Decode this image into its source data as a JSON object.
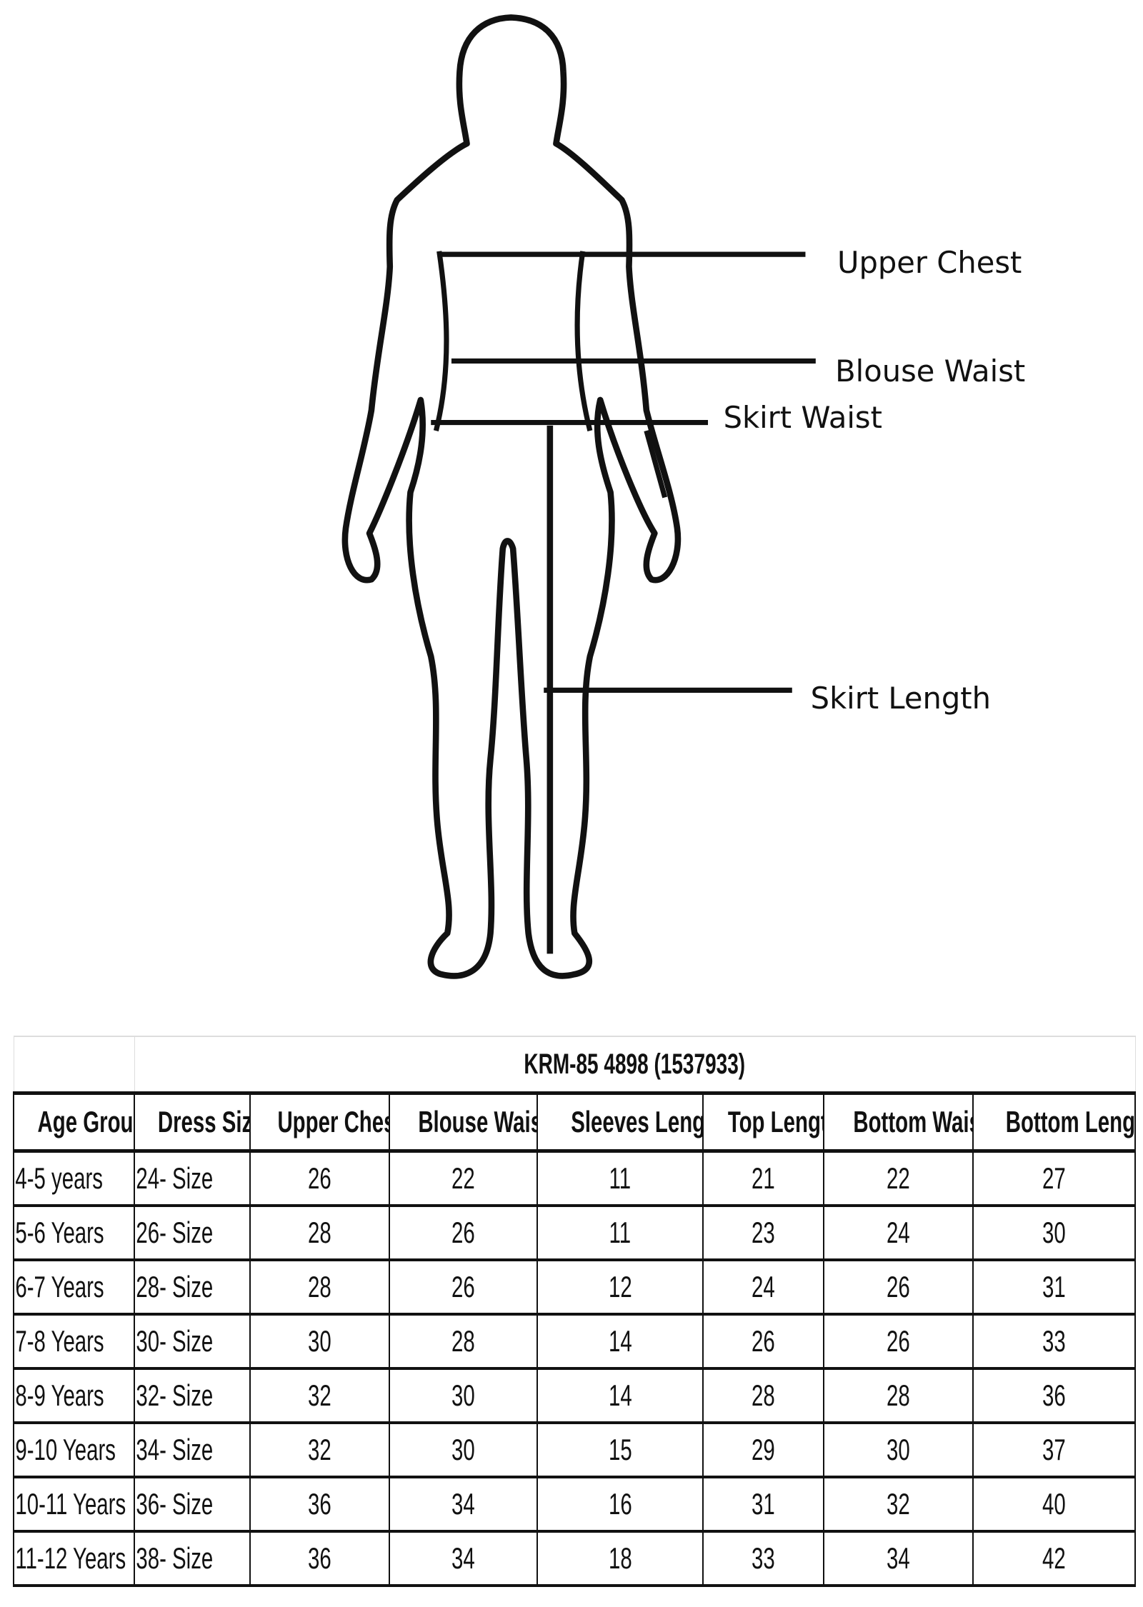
{
  "diagram": {
    "labels": {
      "upper_chest": "Upper Chest",
      "blouse_waist": "Blouse Waist",
      "skirt_waist": "Skirt Waist",
      "skirt_length": "Skirt Length"
    }
  },
  "table": {
    "title": "KRM-85 4898 (1537933)",
    "headers": [
      "Age Group",
      "Dress Size",
      "Upper Chest",
      "Blouse Waist",
      "Sleeves Length",
      "Top Length",
      "Bottom Waist",
      "Bottom Length"
    ],
    "rows": [
      [
        "4-5 years",
        "24- Size",
        "26",
        "22",
        "11",
        "21",
        "22",
        "27"
      ],
      [
        "5-6 Years",
        "26- Size",
        "28",
        "26",
        "11",
        "23",
        "24",
        "30"
      ],
      [
        "6-7 Years",
        "28- Size",
        "28",
        "26",
        "12",
        "24",
        "26",
        "31"
      ],
      [
        "7-8 Years",
        "30- Size",
        "30",
        "28",
        "14",
        "26",
        "26",
        "33"
      ],
      [
        "8-9 Years",
        "32- Size",
        "32",
        "30",
        "14",
        "28",
        "28",
        "36"
      ],
      [
        "9-10 Years",
        "34- Size",
        "32",
        "30",
        "15",
        "29",
        "30",
        "37"
      ],
      [
        "10-11 Years",
        "36- Size",
        "36",
        "34",
        "16",
        "31",
        "32",
        "40"
      ],
      [
        "11-12 Years",
        "38- Size",
        "36",
        "34",
        "18",
        "33",
        "34",
        "42"
      ]
    ]
  }
}
